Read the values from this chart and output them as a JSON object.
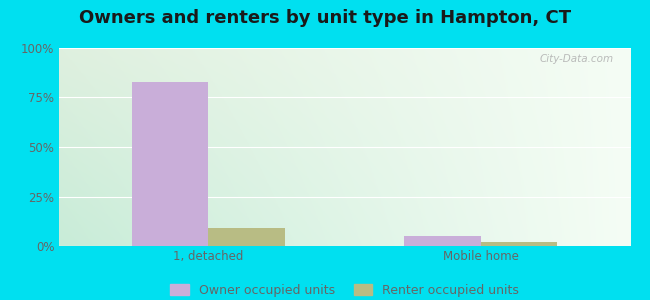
{
  "title": "Owners and renters by unit type in Hampton, CT",
  "categories": [
    "1, detached",
    "Mobile home"
  ],
  "owner_values": [
    83,
    5
  ],
  "renter_values": [
    9,
    2
  ],
  "owner_color": "#c9aed9",
  "renter_color": "#b8bc84",
  "bg_color_topleft": "#dff0df",
  "bg_color_topright": "#f5fdf5",
  "bg_color_bottom": "#c8ecd8",
  "outer_bg": "#00e0f0",
  "yticks": [
    0,
    25,
    50,
    75,
    100
  ],
  "ytick_labels": [
    "0%",
    "25%",
    "50%",
    "75%",
    "100%"
  ],
  "legend_owner": "Owner occupied units",
  "legend_renter": "Renter occupied units",
  "bar_width": 0.28,
  "title_fontsize": 13,
  "axis_fontsize": 8.5,
  "legend_fontsize": 9,
  "watermark": "City-Data.com",
  "grid_color": "#e0ece0",
  "tick_color": "#666666",
  "title_color": "#1a1a1a"
}
